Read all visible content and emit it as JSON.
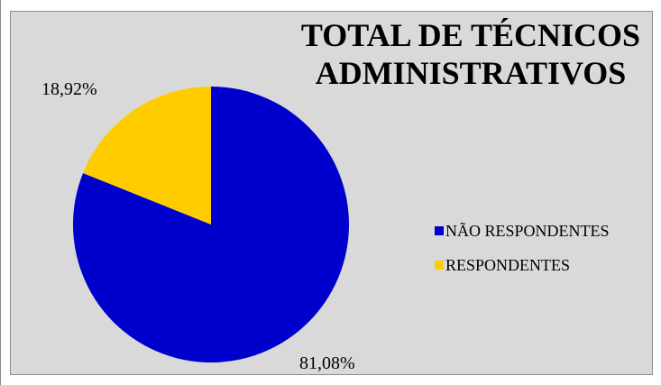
{
  "chart_data": {
    "type": "pie",
    "title_lines": [
      "TOTAL DE TÉCNICOS",
      "ADMINISTRATIVOS"
    ],
    "categories": [
      "NÃO RESPONDENTES",
      "RESPONDENTES"
    ],
    "values": [
      81.08,
      18.92
    ],
    "value_labels": [
      "81,08%",
      "18,92%"
    ],
    "colors": [
      "#0000cc",
      "#ffcc00"
    ],
    "legend_position": "right",
    "start_angle": "12 o'clock, clockwise"
  }
}
